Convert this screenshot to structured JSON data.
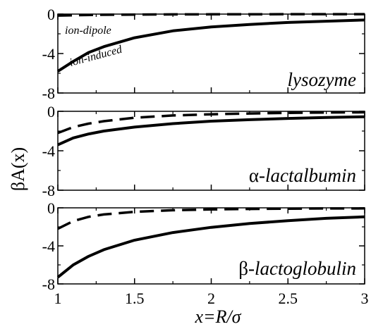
{
  "chart_data": {
    "type": "line",
    "ylabel": "βA(x)",
    "xlabel": "x=R/σ",
    "xlim": [
      1,
      3
    ],
    "xticks": [
      "1",
      "1.5",
      "2",
      "2.5",
      "3"
    ],
    "grid": false,
    "panels": [
      {
        "label_prefix": "",
        "label_text": "lysozyme",
        "ylim": [
          -8,
          0
        ],
        "yticks": [
          "0",
          "-4",
          "-8"
        ],
        "annotations": [
          "ion-dipole",
          "ion-induced"
        ],
        "series": [
          {
            "name": "ion-dipole",
            "style": "dashed",
            "x": [
              1.0,
              1.25,
              1.5,
              1.75,
              2.0,
              2.25,
              2.5,
              2.75,
              3.0
            ],
            "y": [
              -0.15,
              -0.08,
              -0.05,
              -0.03,
              -0.02,
              -0.02,
              -0.01,
              -0.01,
              -0.01
            ]
          },
          {
            "name": "ion-induced",
            "style": "solid",
            "x": [
              1.0,
              1.1,
              1.2,
              1.3,
              1.5,
              1.75,
              2.0,
              2.25,
              2.5,
              2.75,
              3.0
            ],
            "y": [
              -5.8,
              -4.8,
              -3.9,
              -3.3,
              -2.4,
              -1.7,
              -1.3,
              -1.05,
              -0.85,
              -0.72,
              -0.6
            ]
          }
        ]
      },
      {
        "label_prefix": "α-",
        "label_text": "lactalbumin",
        "ylim": [
          -8,
          0
        ],
        "yticks": [
          "0",
          "-4",
          "-8"
        ],
        "annotations": [],
        "series": [
          {
            "name": "ion-dipole",
            "style": "dashed",
            "x": [
              1.0,
              1.1,
              1.2,
              1.3,
              1.5,
              1.75,
              2.0,
              2.25,
              2.5,
              2.75,
              3.0
            ],
            "y": [
              -2.2,
              -1.6,
              -1.25,
              -1.0,
              -0.65,
              -0.42,
              -0.3,
              -0.22,
              -0.16,
              -0.12,
              -0.1
            ]
          },
          {
            "name": "ion-induced",
            "style": "solid",
            "x": [
              1.0,
              1.1,
              1.2,
              1.3,
              1.5,
              1.75,
              2.0,
              2.25,
              2.5,
              2.75,
              3.0
            ],
            "y": [
              -3.4,
              -2.7,
              -2.3,
              -2.0,
              -1.6,
              -1.25,
              -1.0,
              -0.85,
              -0.72,
              -0.62,
              -0.55
            ]
          }
        ]
      },
      {
        "label_prefix": "β-",
        "label_text": "lactoglobulin",
        "ylim": [
          -8,
          0
        ],
        "yticks": [
          "0",
          "-4",
          "-8"
        ],
        "annotations": [],
        "series": [
          {
            "name": "ion-dipole",
            "style": "dashed",
            "x": [
              1.0,
              1.1,
              1.2,
              1.3,
              1.5,
              1.75,
              2.0,
              2.25,
              2.5,
              2.75,
              3.0
            ],
            "y": [
              -2.2,
              -1.4,
              -0.95,
              -0.7,
              -0.42,
              -0.25,
              -0.17,
              -0.12,
              -0.09,
              -0.07,
              -0.06
            ]
          },
          {
            "name": "ion-induced",
            "style": "solid",
            "x": [
              1.0,
              1.1,
              1.2,
              1.3,
              1.5,
              1.75,
              2.0,
              2.25,
              2.5,
              2.75,
              3.0
            ],
            "y": [
              -7.3,
              -6.0,
              -5.1,
              -4.4,
              -3.4,
              -2.6,
              -2.05,
              -1.65,
              -1.35,
              -1.1,
              -0.95
            ]
          }
        ]
      }
    ]
  }
}
